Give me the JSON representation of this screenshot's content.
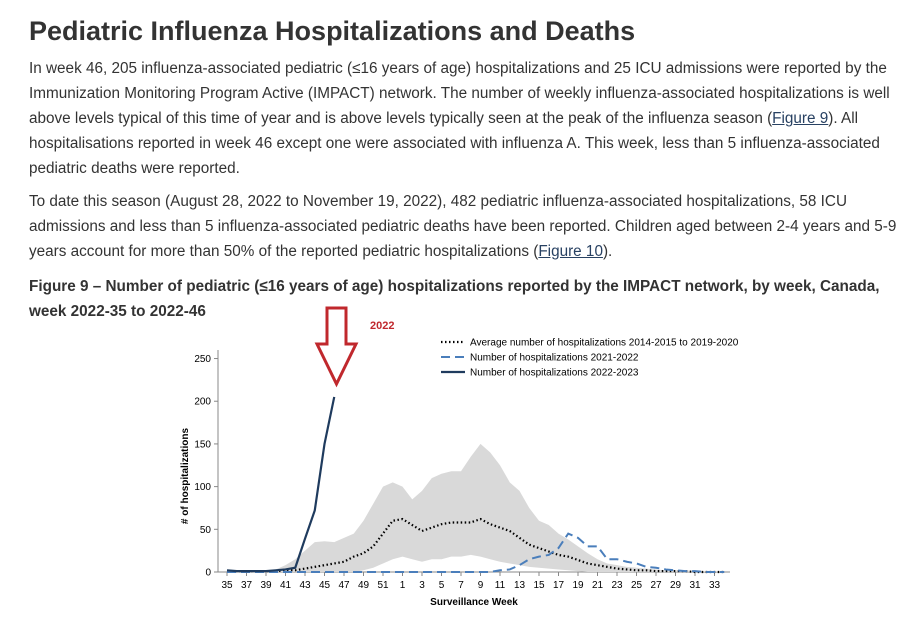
{
  "header": {
    "title": "Pediatric Influenza Hospitalizations and Deaths"
  },
  "paragraphs": [
    {
      "before": "In week 46, 205 influenza-associated pediatric (≤16 years of age) hospitalizations and 25 ICU admissions were reported by the Immunization Monitoring Program Active (IMPACT) network. The number of weekly influenza-associated hospitalizations is well above levels typical of this time of year and is above levels typically seen at the peak of the influenza season (",
      "link": "Figure 9",
      "after": "). All hospitalisations reported in week 46 except one were associated with influenza A. This week, less than 5 influenza-associated pediatric deaths were reported."
    },
    {
      "before": "To date this season (August 28, 2022 to November 19, 2022), 482 pediatric influenza-associated hospitalizations, 58 ICU admissions and less than 5 influenza-associated pediatric deaths have been reported. Children aged between 2-4 years and 5-9 years account for more than 50% of the reported pediatric hospitalizations (",
      "link": "Figure 10",
      "after": ")."
    }
  ],
  "figure_caption": "Figure 9 – Number of pediatric (≤16 years of age) hospitalizations reported by the IMPACT network, by week, Canada, week 2022-35 to 2022-46",
  "chart_data": {
    "type": "line",
    "annotation": "2022",
    "annotation_color": "#c0282d",
    "xlabel": "Surveillance Week",
    "ylabel": "# of hospitalizations",
    "categories": [
      "35",
      null,
      "37",
      null,
      "39",
      null,
      "41",
      null,
      "43",
      null,
      "45",
      null,
      "47",
      null,
      "49",
      null,
      "51",
      null,
      "1",
      null,
      "3",
      null,
      "5",
      null,
      "7",
      null,
      "9",
      null,
      "11",
      null,
      "13",
      null,
      "15",
      null,
      "17",
      null,
      "19",
      null,
      "21",
      null,
      "23",
      null,
      "25",
      null,
      "27",
      null,
      "29",
      null,
      "31",
      null,
      "33",
      null
    ],
    "ylim": [
      0,
      260
    ],
    "yticks": [
      0,
      50,
      100,
      150,
      200,
      250
    ],
    "legend": "top-right",
    "range": {
      "color": "#d9d9d9",
      "low": [
        0,
        0,
        0,
        0,
        0,
        0,
        0,
        0,
        0,
        0,
        0,
        0,
        0,
        0,
        2,
        5,
        10,
        15,
        18,
        15,
        12,
        15,
        15,
        18,
        18,
        20,
        18,
        15,
        12,
        10,
        8,
        6,
        5,
        4,
        3,
        2,
        1,
        0,
        0,
        0,
        0,
        0,
        0,
        0,
        0,
        0,
        0,
        0,
        0,
        0,
        0,
        0
      ],
      "high": [
        1,
        1,
        1,
        1,
        2,
        3,
        8,
        15,
        25,
        35,
        36,
        35,
        40,
        45,
        60,
        80,
        100,
        105,
        100,
        85,
        95,
        110,
        115,
        118,
        118,
        135,
        150,
        140,
        125,
        105,
        95,
        75,
        60,
        55,
        45,
        38,
        30,
        22,
        15,
        10,
        8,
        6,
        5,
        4,
        3,
        2,
        2,
        2,
        1,
        1,
        1,
        1
      ]
    },
    "series": [
      {
        "name": "Average number of hospitalizations 2014-2015 to 2019-2020",
        "color": "#000000",
        "dash": "dotted",
        "values": [
          1,
          1,
          1,
          1,
          1,
          1,
          2,
          2,
          4,
          6,
          8,
          10,
          12,
          18,
          22,
          30,
          45,
          60,
          62,
          55,
          48,
          52,
          56,
          58,
          58,
          58,
          62,
          56,
          52,
          48,
          40,
          32,
          28,
          24,
          20,
          18,
          14,
          10,
          8,
          6,
          4,
          3,
          2,
          2,
          1,
          1,
          1,
          1,
          0,
          0,
          0,
          0
        ]
      },
      {
        "name": "Number of hospitalizations 2021-2022",
        "color": "#4a7ebb",
        "dash": "dashed",
        "values": [
          0,
          0,
          0,
          0,
          0,
          0,
          0,
          0,
          0,
          0,
          0,
          0,
          0,
          0,
          0,
          0,
          0,
          0,
          0,
          0,
          0,
          0,
          0,
          0,
          0,
          0,
          0,
          0,
          2,
          3,
          8,
          15,
          18,
          20,
          28,
          45,
          40,
          30,
          30,
          15,
          15,
          12,
          10,
          6,
          5,
          3,
          2,
          1,
          1,
          0,
          0,
          0
        ]
      },
      {
        "name": "Number of hospitalizations 2022-2023",
        "color": "#1f3b5e",
        "dash": "solid",
        "values": [
          2,
          1,
          1,
          1,
          1,
          2,
          3,
          5,
          39,
          72,
          150,
          205,
          null,
          null,
          null,
          null,
          null,
          null,
          null,
          null,
          null,
          null,
          null,
          null,
          null,
          null,
          null,
          null,
          null,
          null,
          null,
          null,
          null,
          null,
          null,
          null,
          null,
          null,
          null,
          null,
          null,
          null,
          null,
          null,
          null,
          null,
          null,
          null,
          null,
          null,
          null,
          null
        ]
      }
    ]
  }
}
